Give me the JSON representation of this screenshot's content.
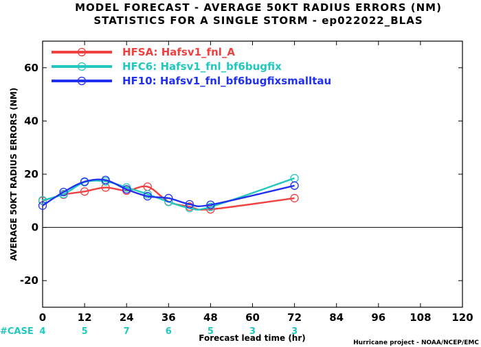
{
  "chart_data": {
    "type": "line",
    "title": "MODEL FORECAST - AVERAGE 50KT RADIUS ERRORS (NM)",
    "subtitle": "STATISTICS FOR A SINGLE STORM - ep022022_BLAS",
    "xlabel": "Forecast lead time (hr)",
    "ylabel": "AVERAGE 50KT RADIUS ERRORS (NM)",
    "xlim": [
      0,
      120
    ],
    "ylim": [
      -30,
      70
    ],
    "xticks": [
      0,
      12,
      24,
      36,
      48,
      60,
      72,
      84,
      96,
      108,
      120
    ],
    "yticks": [
      -20,
      0,
      20,
      40,
      60
    ],
    "grid": false,
    "legend_position": "top-left",
    "zero_line": true,
    "series": [
      {
        "name": "HFSA: Hafsv1_fnl_A",
        "color": "#f04040",
        "x": [
          0,
          6,
          12,
          18,
          24,
          30,
          36,
          42,
          48,
          72
        ],
        "y": [
          10.0,
          12.3,
          13.5,
          15.0,
          13.8,
          15.3,
          9.7,
          7.8,
          6.8,
          11.0
        ]
      },
      {
        "name": "HFC6: Hafsv1_fnl_bf6bugfix",
        "color": "#20c8c0",
        "x": [
          0,
          6,
          12,
          18,
          24,
          30,
          36,
          42,
          48,
          72
        ],
        "y": [
          10.2,
          12.5,
          17.0,
          17.3,
          15.0,
          12.5,
          9.6,
          7.3,
          7.7,
          18.5
        ]
      },
      {
        "name": "HF10: Hafsv1_fnl_bf6bugfixsmalltau",
        "color": "#2030f0",
        "x": [
          0,
          6,
          12,
          18,
          24,
          30,
          36,
          42,
          48,
          72
        ],
        "y": [
          8.2,
          13.3,
          17.2,
          17.8,
          14.3,
          11.7,
          11.0,
          8.7,
          8.5,
          15.7
        ]
      }
    ],
    "case_label": "#CASE",
    "case_color": "#20c8c0",
    "cases": [
      {
        "x": 0,
        "n": "4"
      },
      {
        "x": 12,
        "n": "5"
      },
      {
        "x": 24,
        "n": "7"
      },
      {
        "x": 36,
        "n": "6"
      },
      {
        "x": 48,
        "n": "5"
      },
      {
        "x": 60,
        "n": "3"
      },
      {
        "x": 72,
        "n": "3"
      }
    ],
    "credit": "Hurricane project - NOAA/NCEP/EMC"
  }
}
